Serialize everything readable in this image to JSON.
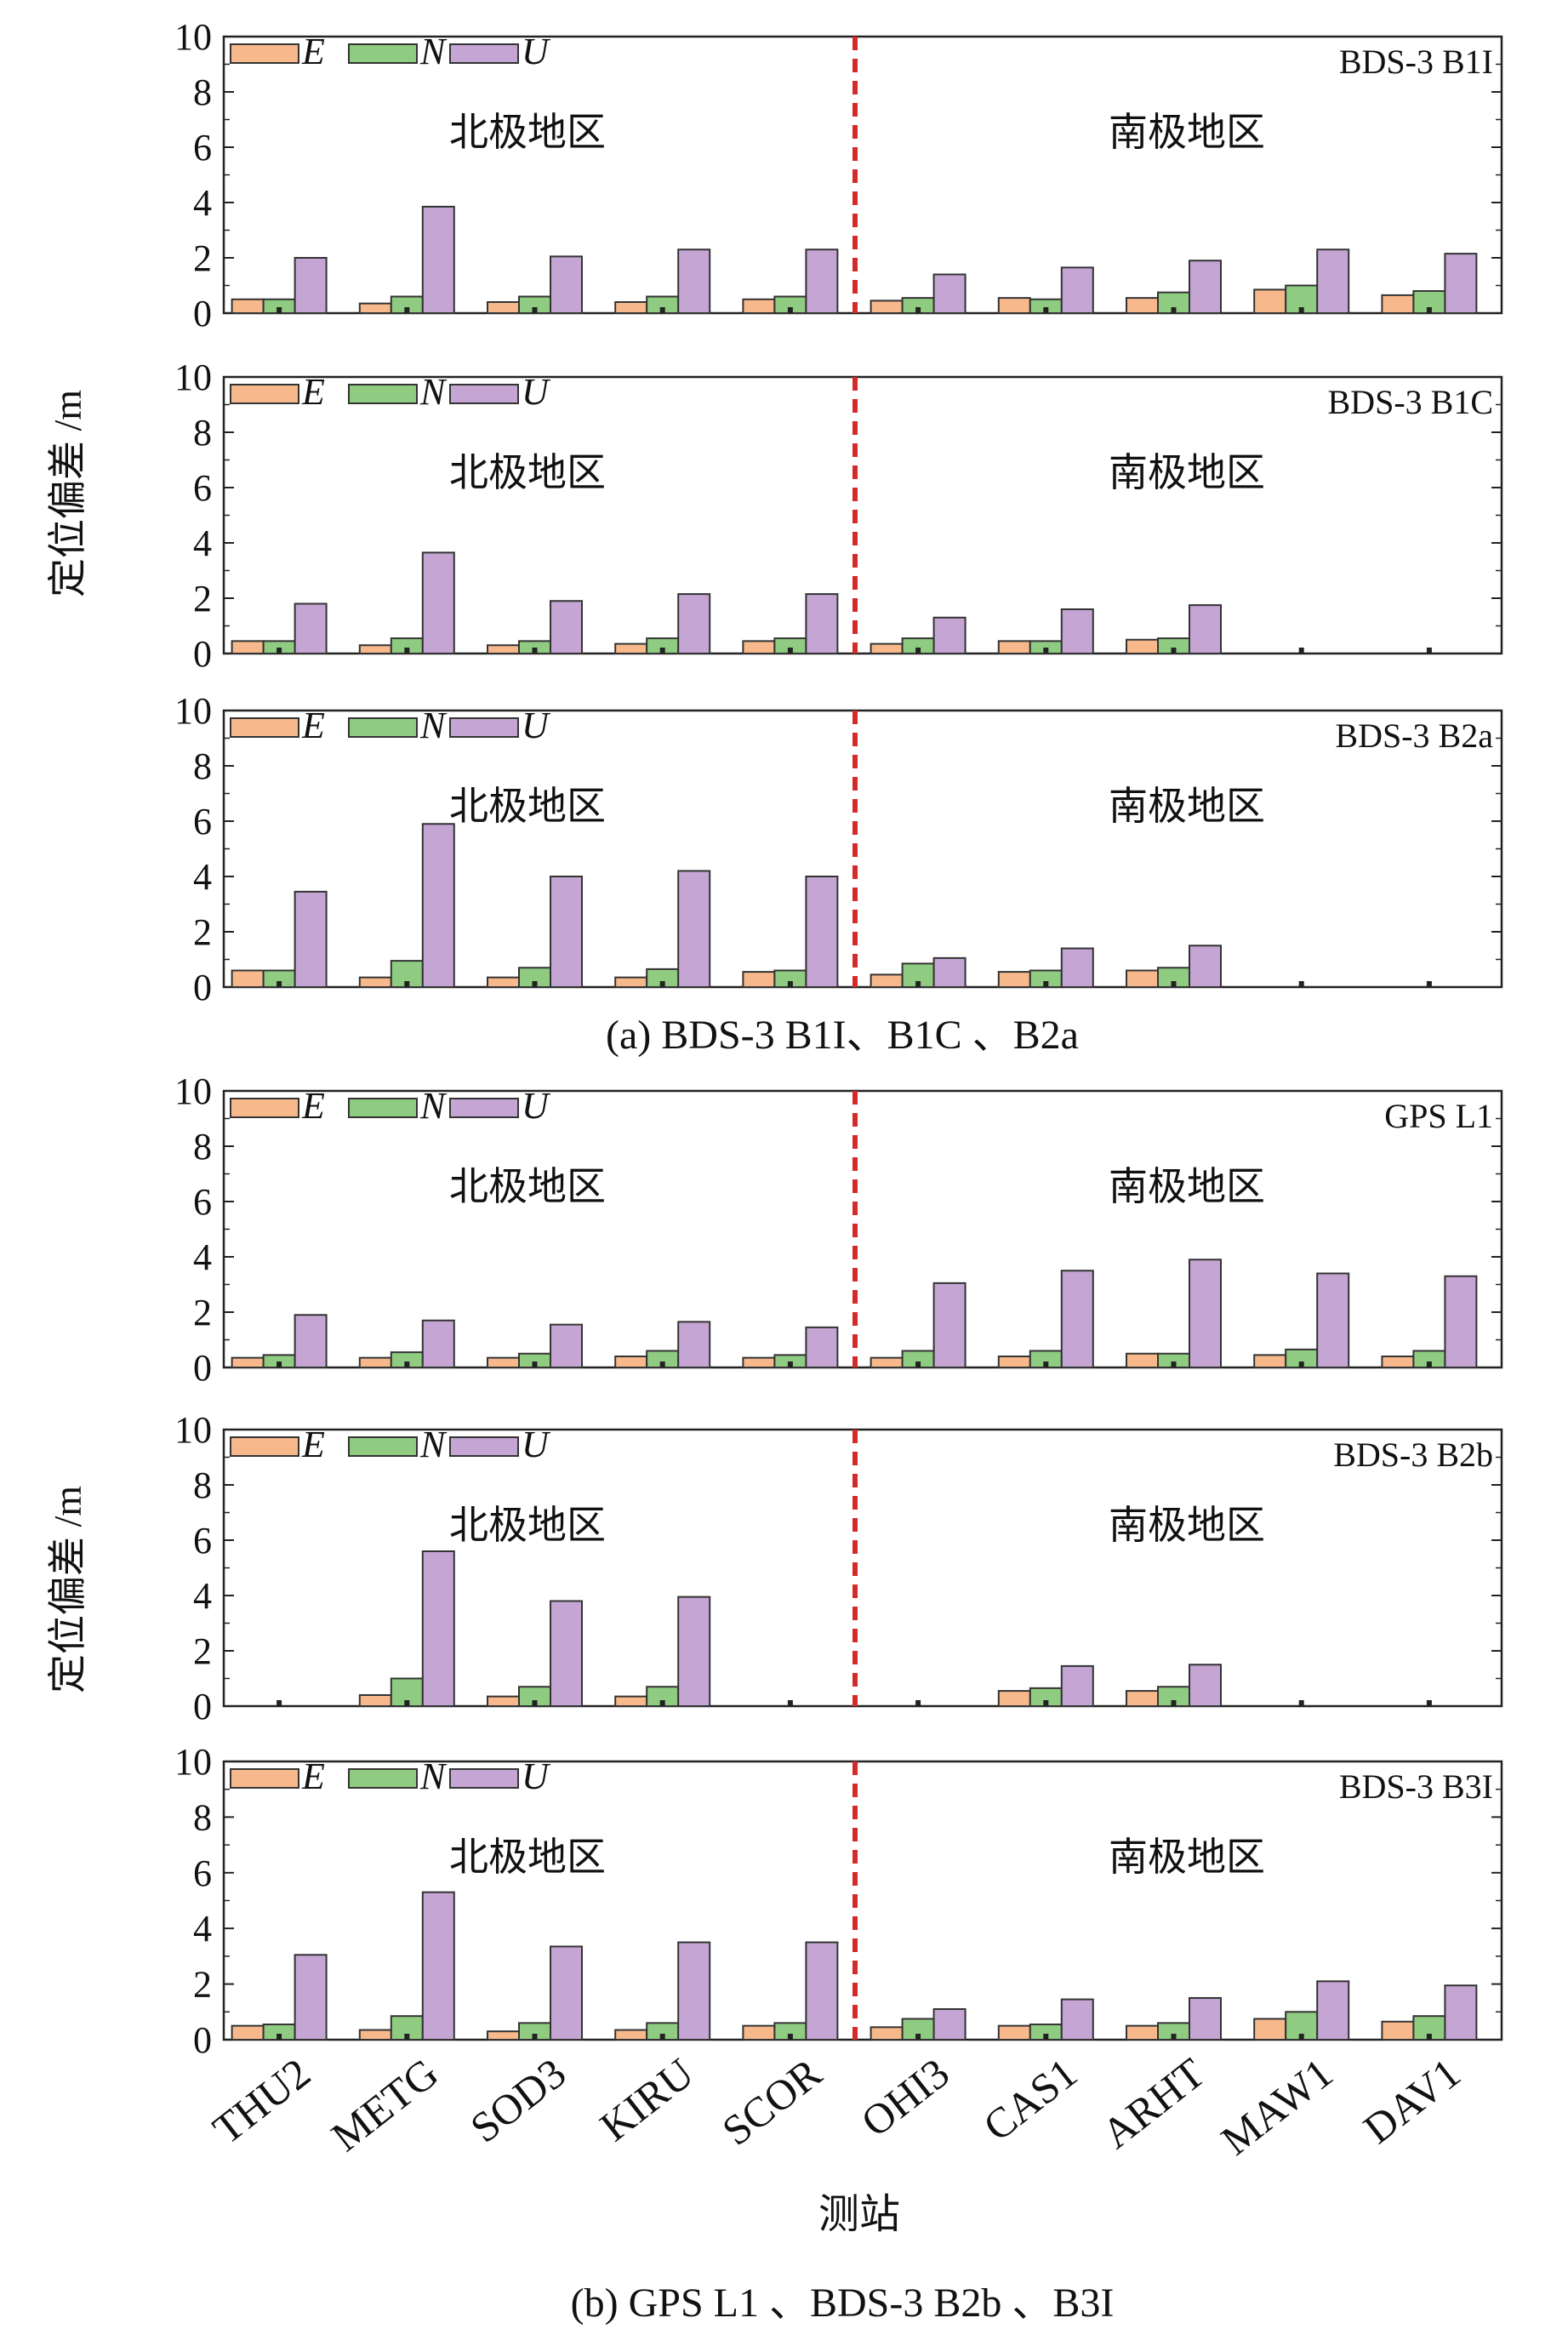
{
  "figure": {
    "caption_a": "(a) BDS-3 B1I、B1C 、B2a",
    "caption_b": "(b) GPS L1 、BDS-3 B2b 、B3I",
    "ylabel": "定位偏差 /m",
    "xlabel": "测站",
    "region_north": "北极地区",
    "region_south": "南极地区",
    "legend": [
      "E",
      "N",
      "U"
    ],
    "colors": {
      "E": "#f7b98c",
      "N": "#8fcc82",
      "U": "#c4a5d3",
      "divider": "#d42a2a"
    }
  },
  "chart_data": [
    {
      "type": "bar",
      "title": "BDS-3 B1I",
      "ylim": [
        0,
        10
      ],
      "yticks": [
        0,
        2,
        4,
        6,
        8,
        10
      ],
      "categories": [
        "THU2",
        "METG",
        "SOD3",
        "KIRU",
        "SCOR",
        "OHI3",
        "CAS1",
        "ARHT",
        "MAW1",
        "DAV1"
      ],
      "series": [
        {
          "name": "E",
          "values": [
            0.5,
            0.35,
            0.4,
            0.4,
            0.5,
            0.45,
            0.55,
            0.55,
            0.85,
            0.65
          ]
        },
        {
          "name": "N",
          "values": [
            0.5,
            0.6,
            0.6,
            0.6,
            0.6,
            0.55,
            0.5,
            0.75,
            1.0,
            0.8
          ]
        },
        {
          "name": "U",
          "values": [
            2.0,
            3.85,
            2.05,
            2.3,
            2.3,
            1.4,
            1.65,
            1.9,
            2.3,
            2.15
          ]
        }
      ]
    },
    {
      "type": "bar",
      "title": "BDS-3 B1C",
      "ylim": [
        0,
        10
      ],
      "yticks": [
        0,
        2,
        4,
        6,
        8,
        10
      ],
      "categories": [
        "THU2",
        "METG",
        "SOD3",
        "KIRU",
        "SCOR",
        "OHI3",
        "CAS1",
        "ARHT",
        "MAW1",
        "DAV1"
      ],
      "series": [
        {
          "name": "E",
          "values": [
            0.45,
            0.3,
            0.3,
            0.35,
            0.45,
            0.35,
            0.45,
            0.5,
            null,
            null
          ]
        },
        {
          "name": "N",
          "values": [
            0.45,
            0.55,
            0.45,
            0.55,
            0.55,
            0.55,
            0.45,
            0.55,
            null,
            null
          ]
        },
        {
          "name": "U",
          "values": [
            1.8,
            3.65,
            1.9,
            2.15,
            2.15,
            1.3,
            1.6,
            1.75,
            null,
            null
          ]
        }
      ]
    },
    {
      "type": "bar",
      "title": "BDS-3 B2a",
      "ylim": [
        0,
        10
      ],
      "yticks": [
        0,
        2,
        4,
        6,
        8,
        10
      ],
      "categories": [
        "THU2",
        "METG",
        "SOD3",
        "KIRU",
        "SCOR",
        "OHI3",
        "CAS1",
        "ARHT",
        "MAW1",
        "DAV1"
      ],
      "series": [
        {
          "name": "E",
          "values": [
            0.6,
            0.35,
            0.35,
            0.35,
            0.55,
            0.45,
            0.55,
            0.6,
            null,
            null
          ]
        },
        {
          "name": "N",
          "values": [
            0.6,
            0.95,
            0.7,
            0.65,
            0.6,
            0.85,
            0.6,
            0.7,
            null,
            null
          ]
        },
        {
          "name": "U",
          "values": [
            3.45,
            5.9,
            4.0,
            4.2,
            4.0,
            1.05,
            1.4,
            1.5,
            null,
            null
          ]
        }
      ]
    },
    {
      "type": "bar",
      "title": "GPS L1",
      "ylim": [
        0,
        10
      ],
      "yticks": [
        0,
        2,
        4,
        6,
        8,
        10
      ],
      "categories": [
        "THU2",
        "METG",
        "SOD3",
        "KIRU",
        "SCOR",
        "OHI3",
        "CAS1",
        "ARHT",
        "MAW1",
        "DAV1"
      ],
      "series": [
        {
          "name": "E",
          "values": [
            0.35,
            0.35,
            0.35,
            0.4,
            0.35,
            0.35,
            0.4,
            0.5,
            0.45,
            0.4
          ]
        },
        {
          "name": "N",
          "values": [
            0.45,
            0.55,
            0.5,
            0.6,
            0.45,
            0.6,
            0.6,
            0.5,
            0.65,
            0.6
          ]
        },
        {
          "name": "U",
          "values": [
            1.9,
            1.7,
            1.55,
            1.65,
            1.45,
            3.05,
            3.5,
            3.9,
            3.4,
            3.3
          ]
        }
      ]
    },
    {
      "type": "bar",
      "title": "BDS-3 B2b",
      "ylim": [
        0,
        10
      ],
      "yticks": [
        0,
        2,
        4,
        6,
        8,
        10
      ],
      "categories": [
        "THU2",
        "METG",
        "SOD3",
        "KIRU",
        "SCOR",
        "OHI3",
        "CAS1",
        "ARHT",
        "MAW1",
        "DAV1"
      ],
      "series": [
        {
          "name": "E",
          "values": [
            null,
            0.4,
            0.35,
            0.35,
            null,
            null,
            0.55,
            0.55,
            null,
            null
          ]
        },
        {
          "name": "N",
          "values": [
            null,
            1.0,
            0.7,
            0.7,
            null,
            null,
            0.65,
            0.7,
            null,
            null
          ]
        },
        {
          "name": "U",
          "values": [
            null,
            5.6,
            3.8,
            3.95,
            null,
            null,
            1.45,
            1.5,
            null,
            null
          ]
        }
      ]
    },
    {
      "type": "bar",
      "title": "BDS-3 B3I",
      "ylim": [
        0,
        10
      ],
      "yticks": [
        0,
        2,
        4,
        6,
        8,
        10
      ],
      "categories": [
        "THU2",
        "METG",
        "SOD3",
        "KIRU",
        "SCOR",
        "OHI3",
        "CAS1",
        "ARHT",
        "MAW1",
        "DAV1"
      ],
      "series": [
        {
          "name": "E",
          "values": [
            0.5,
            0.35,
            0.3,
            0.35,
            0.5,
            0.45,
            0.5,
            0.5,
            0.75,
            0.65
          ]
        },
        {
          "name": "N",
          "values": [
            0.55,
            0.85,
            0.6,
            0.6,
            0.6,
            0.75,
            0.55,
            0.6,
            1.0,
            0.85
          ]
        },
        {
          "name": "U",
          "values": [
            3.05,
            5.3,
            3.35,
            3.5,
            3.5,
            1.1,
            1.45,
            1.5,
            2.1,
            1.95
          ]
        }
      ]
    }
  ]
}
